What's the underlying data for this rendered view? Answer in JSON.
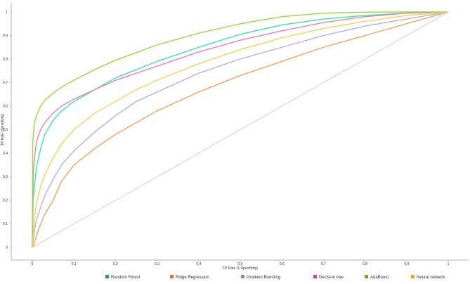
{
  "chart_data": {
    "type": "line",
    "xlabel": "FP Rate (1-Specificity)",
    "ylabel": "TP Rate (Sensitivity)",
    "xlim": [
      0,
      1
    ],
    "ylim": [
      0,
      1
    ],
    "x_ticks": [
      "0",
      "0,1",
      "0,2",
      "0,3",
      "0,4",
      "0,5",
      "0,6",
      "0,7",
      "0,8",
      "0,9",
      "1"
    ],
    "y_ticks": [
      "0",
      "0,1",
      "0,2",
      "0,3",
      "0,4",
      "0,5",
      "0,6",
      "0,7",
      "0,8",
      "0,9",
      "1"
    ],
    "grid": false,
    "legend_position": "bottom",
    "reference_line": {
      "x": [
        0,
        1
      ],
      "y": [
        0,
        1
      ],
      "color": "#c8c8c8"
    },
    "series": [
      {
        "name": "Random Forest",
        "color": "#35e6a0",
        "legend_color": "#1a9e6e",
        "x": [
          0,
          0.002,
          0.005,
          0.01,
          0.02,
          0.03,
          0.05,
          0.07,
          0.1,
          0.15,
          0.2,
          0.3,
          0.4,
          0.5,
          0.6,
          0.7,
          0.8,
          0.9,
          1
        ],
        "y": [
          0,
          0.2,
          0.26,
          0.34,
          0.42,
          0.48,
          0.54,
          0.58,
          0.62,
          0.67,
          0.72,
          0.79,
          0.85,
          0.905,
          0.945,
          0.97,
          0.985,
          0.995,
          1
        ]
      },
      {
        "name": "Ridge Regression",
        "color": "#f4a05a",
        "legend_color": "#e8711f",
        "x": [
          0,
          0.005,
          0.01,
          0.02,
          0.03,
          0.05,
          0.07,
          0.1,
          0.15,
          0.2,
          0.25,
          0.3,
          0.4,
          0.5,
          0.6,
          0.7,
          0.8,
          0.9,
          1
        ],
        "y": [
          0,
          0.02,
          0.05,
          0.1,
          0.14,
          0.2,
          0.28,
          0.35,
          0.42,
          0.48,
          0.53,
          0.58,
          0.66,
          0.73,
          0.79,
          0.85,
          0.9,
          0.95,
          1
        ]
      },
      {
        "name": "Gradient Boosting",
        "color": "#b5aee6",
        "legend_color": "#8a80cc",
        "x": [
          0,
          0.005,
          0.01,
          0.02,
          0.03,
          0.05,
          0.07,
          0.1,
          0.15,
          0.2,
          0.25,
          0.3,
          0.4,
          0.5,
          0.6,
          0.7,
          0.8,
          0.9,
          1
        ],
        "y": [
          0,
          0.07,
          0.12,
          0.17,
          0.22,
          0.29,
          0.35,
          0.41,
          0.49,
          0.56,
          0.62,
          0.66,
          0.74,
          0.8,
          0.85,
          0.9,
          0.94,
          0.97,
          1
        ]
      },
      {
        "name": "Decision tree",
        "color": "#ee7fa8",
        "legend_color": "#e0417e",
        "x": [
          0,
          0.002,
          0.005,
          0.01,
          0.02,
          0.03,
          0.05,
          0.07,
          0.1,
          0.15,
          0.2,
          0.3,
          0.4,
          0.5,
          0.6,
          0.7,
          0.8,
          0.9,
          1
        ],
        "y": [
          0,
          0.3,
          0.38,
          0.45,
          0.5,
          0.53,
          0.57,
          0.6,
          0.63,
          0.67,
          0.71,
          0.77,
          0.83,
          0.88,
          0.92,
          0.955,
          0.98,
          0.995,
          1
        ]
      },
      {
        "name": "AdaBoost",
        "color": "#8fdd3c",
        "legend_color": "#63b51c",
        "x": [
          0,
          0.001,
          0.003,
          0.005,
          0.01,
          0.02,
          0.03,
          0.05,
          0.07,
          0.1,
          0.15,
          0.2,
          0.3,
          0.4,
          0.5,
          0.6,
          0.7,
          0.8,
          0.9,
          1
        ],
        "y": [
          0,
          0.44,
          0.49,
          0.53,
          0.56,
          0.6,
          0.625,
          0.655,
          0.68,
          0.71,
          0.755,
          0.795,
          0.86,
          0.91,
          0.95,
          0.98,
          0.995,
          0.999,
          1,
          1
        ]
      },
      {
        "name": "Neural network",
        "color": "#f6d060",
        "legend_color": "#e8a91a",
        "x": [
          0,
          0.005,
          0.01,
          0.02,
          0.03,
          0.05,
          0.07,
          0.1,
          0.15,
          0.2,
          0.25,
          0.3,
          0.4,
          0.5,
          0.6,
          0.7,
          0.8,
          0.9,
          1
        ],
        "y": [
          0,
          0.12,
          0.19,
          0.26,
          0.31,
          0.38,
          0.44,
          0.5,
          0.57,
          0.62,
          0.67,
          0.71,
          0.78,
          0.84,
          0.89,
          0.93,
          0.96,
          0.985,
          1
        ]
      }
    ]
  }
}
